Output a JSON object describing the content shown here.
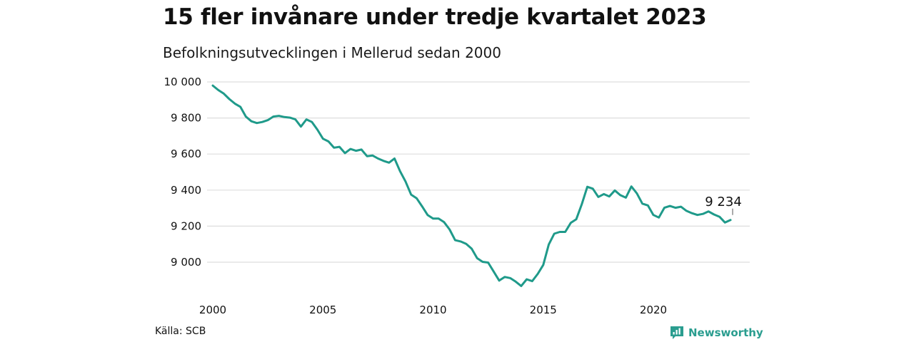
{
  "header": {
    "title": "15 fler invånare under tredje kvartalet 2023",
    "subtitle": "Befolkningsutvecklingen i Mellerud sedan 2000"
  },
  "footer": {
    "source": "Källa: SCB",
    "brand": "Newsworthy"
  },
  "colors": {
    "line": "#1f9a8a",
    "grid": "#dddddd",
    "brand": "#2a9d8f"
  },
  "chart_data": {
    "type": "line",
    "title": "15 fler invånare under tredje kvartalet 2023",
    "subtitle": "Befolkningsutvecklingen i Mellerud sedan 2000",
    "xlabel": "",
    "ylabel": "",
    "x_ticks": [
      2000,
      2005,
      2010,
      2015,
      2020
    ],
    "y_ticks": [
      9000,
      9200,
      9400,
      9600,
      9800,
      10000
    ],
    "y_tick_labels": [
      "9 000",
      "9 200",
      "9 400",
      "9 600",
      "9 800",
      "10 000"
    ],
    "xlim": [
      2000,
      2023.75
    ],
    "ylim": [
      8860,
      10020
    ],
    "grid": "horizontal",
    "annotation": {
      "x": 2023.5,
      "y": 9234,
      "label": "9 234"
    },
    "series": [
      {
        "x": [
          2000.0,
          2000.25,
          2000.5,
          2000.75,
          2001.0,
          2001.25,
          2001.5,
          2001.75,
          2002.0,
          2002.25,
          2002.5,
          2002.75,
          2003.0,
          2003.25,
          2003.5,
          2003.75,
          2004.0,
          2004.25,
          2004.5,
          2004.75,
          2005.0,
          2005.25,
          2005.5,
          2005.75,
          2006.0,
          2006.25,
          2006.5,
          2006.75,
          2007.0,
          2007.25,
          2007.5,
          2007.75,
          2008.0,
          2008.25,
          2008.5,
          2008.75,
          2009.0,
          2009.25,
          2009.5,
          2009.75,
          2010.0,
          2010.25,
          2010.5,
          2010.75,
          2011.0,
          2011.25,
          2011.5,
          2011.75,
          2012.0,
          2012.25,
          2012.5,
          2012.75,
          2013.0,
          2013.25,
          2013.5,
          2013.75,
          2014.0,
          2014.25,
          2014.5,
          2014.75,
          2015.0,
          2015.25,
          2015.5,
          2015.75,
          2016.0,
          2016.25,
          2016.5,
          2016.75,
          2017.0,
          2017.25,
          2017.5,
          2017.75,
          2018.0,
          2018.25,
          2018.5,
          2018.75,
          2019.0,
          2019.25,
          2019.5,
          2019.75,
          2020.0,
          2020.25,
          2020.5,
          2020.75,
          2021.0,
          2021.25,
          2021.5,
          2021.75,
          2022.0,
          2022.25,
          2022.5,
          2022.75,
          2023.0,
          2023.25,
          2023.5
        ],
        "values": [
          9980,
          9955,
          9935,
          9905,
          9880,
          9862,
          9808,
          9782,
          9772,
          9778,
          9788,
          9808,
          9812,
          9805,
          9802,
          9792,
          9752,
          9792,
          9778,
          9735,
          9685,
          9670,
          9635,
          9640,
          9605,
          9628,
          9618,
          9625,
          9588,
          9592,
          9575,
          9562,
          9552,
          9575,
          9505,
          9448,
          9375,
          9355,
          9310,
          9262,
          9242,
          9242,
          9222,
          9182,
          9122,
          9115,
          9102,
          9075,
          9022,
          9002,
          8998,
          8948,
          8898,
          8918,
          8912,
          8892,
          8868,
          8905,
          8895,
          8935,
          8985,
          9098,
          9158,
          9168,
          9168,
          9218,
          9238,
          9322,
          9418,
          9408,
          9362,
          9378,
          9365,
          9398,
          9372,
          9358,
          9420,
          9382,
          9325,
          9315,
          9262,
          9248,
          9302,
          9312,
          9302,
          9308,
          9285,
          9272,
          9262,
          9268,
          9282,
          9265,
          9252,
          9220,
          9234
        ]
      }
    ]
  }
}
